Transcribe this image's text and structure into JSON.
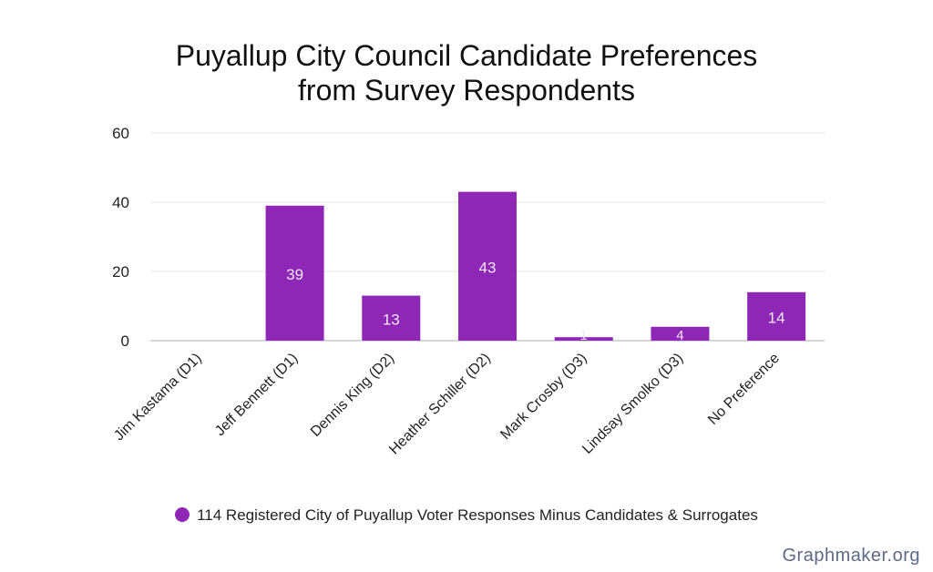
{
  "chart_data": {
    "type": "bar",
    "title_lines": [
      "Puyallup City Council Candidate Preferences",
      "from Survey Respondents"
    ],
    "categories": [
      "Jim Kastama (D1)",
      "Jeff Bennett (D1)",
      "Dennis King (D2)",
      "Heather Schiller (D2)",
      "Mark Crosby (D3)",
      "Lindsay Smolko (D3)",
      "No Preference"
    ],
    "series": [
      {
        "name": "114 Registered City of Puyallup Voter Responses Minus Candidates & Surrogates",
        "values": [
          0,
          39,
          13,
          43,
          1,
          4,
          14
        ],
        "color": "#8e27b5"
      }
    ],
    "data_labels": [
      "",
      "39",
      "13",
      "43",
      "1",
      "4",
      "14"
    ],
    "ylim": [
      0,
      60
    ],
    "yticks": [
      "0",
      "20",
      "40",
      "60"
    ],
    "grid": true,
    "legend_position": "bottom"
  },
  "watermark": "Graphmaker.org"
}
